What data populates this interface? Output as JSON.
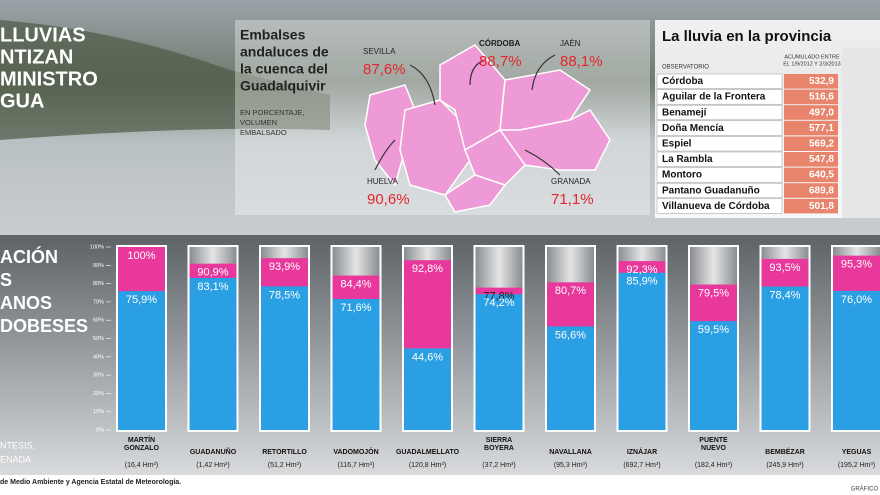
{
  "headline": {
    "lines": [
      "LLUVIAS",
      "NTIZAN",
      "MINISTRO",
      "GUA"
    ]
  },
  "section": {
    "lines": [
      "ACIÓN",
      "S",
      "ANOS",
      "DOBESES"
    ],
    "note": [
      "NTESIS,",
      "ENADA"
    ]
  },
  "source": "de Medio Ambiente y Agencia Estatal de Meteorología.",
  "credit": "GRÁFICO",
  "map": {
    "title": [
      "Embalses",
      "andaluces de",
      "la cuenca del",
      "Guadalquivir"
    ],
    "subtitle": [
      "EN PORCENTAJE,",
      "VOLUMEN",
      "EMBALSADO"
    ],
    "provinces": [
      {
        "name": "SEVILLA",
        "value": 87.6,
        "value_label": "87,6%"
      },
      {
        "name": "CÓRDOBA",
        "value": 88.7,
        "value_label": "88,7%"
      },
      {
        "name": "JAÉN",
        "value": 88.1,
        "value_label": "88,1%"
      },
      {
        "name": "HUELVA",
        "value": 90.6,
        "value_label": "90,6%"
      },
      {
        "name": "GRANADA",
        "value": 71.1,
        "value_label": "71,1%"
      }
    ]
  },
  "table": {
    "title": "La lluvia en la provincia",
    "headers": [
      "OBSERVATORIO",
      "ACUMULADO ENTRE",
      "EL 1/9/2012 Y 2/3/2013"
    ],
    "rows": [
      [
        "Córdoba",
        "532,9"
      ],
      [
        "Aguilar de la Frontera",
        "516,6"
      ],
      [
        "Benamejí",
        "497,0"
      ],
      [
        "Doña Mencía",
        "577,1"
      ],
      [
        "Espiel",
        "569,2"
      ],
      [
        "La Rambla",
        "547,8"
      ],
      [
        "Montoro",
        "640,5"
      ],
      [
        "Pantano Guadanuño",
        "689,8"
      ],
      [
        "Villanueva de Córdoba",
        "501,8"
      ]
    ]
  },
  "chart_data": {
    "type": "bar",
    "categories": [
      "MARTÍN GONZALO",
      "GUADANUÑO",
      "RETORTILLO",
      "VADOMOJÓN",
      "GUADALMELLATO",
      "SIERRA BOYERA",
      "NAVALLANA",
      "IZNÁJAR",
      "PUENTE NUEVO",
      "BEMBÉZAR",
      "YEGUAS"
    ],
    "capacities": [
      "(16,4 Hm³)",
      "(1,42 Hm³)",
      "(51,2 Hm³)",
      "(116,7 Hm³)",
      "(120,8 Hm³)",
      "(37,2 Hm³)",
      "(95,3 Hm³)",
      "(692,7 Hm³)",
      "(182,4 Hm³)",
      "(245,9 Hm³)",
      "(195,2 Hm³)"
    ],
    "series": [
      {
        "color": "#e8389b",
        "values": [
          100,
          90.9,
          93.9,
          84.4,
          92.8,
          77.8,
          80.7,
          92.3,
          79.5,
          93.5,
          95.3
        ],
        "value_labels": [
          "100%",
          "90,9%",
          "93,9%",
          "84,4%",
          "92,8%",
          "77,8%",
          "80,7%",
          "92,3%",
          "79,5%",
          "93,5%",
          "95,3%"
        ]
      },
      {
        "color": "#2b9fe3",
        "values": [
          75.9,
          83.1,
          78.5,
          71.6,
          44.6,
          74.2,
          56.6,
          85.9,
          59.5,
          78.4,
          76.0
        ],
        "value_labels": [
          "75,9%",
          "83,1%",
          "78,5%",
          "71,6%",
          "44,6%",
          "74,2%",
          "56,6%",
          "85,9%",
          "59,5%",
          "78,4%",
          "76,0%"
        ]
      }
    ],
    "ylim": [
      0,
      100
    ],
    "yticks": [
      {
        "value": 0,
        "label": "0%"
      },
      {
        "value": 10,
        "label": "10%"
      },
      {
        "value": 20,
        "label": "20%"
      },
      {
        "value": 30,
        "label": "30%"
      },
      {
        "value": 40,
        "label": "40%"
      },
      {
        "value": 50,
        "label": "50%"
      },
      {
        "value": 60,
        "label": "60%"
      },
      {
        "value": 70,
        "label": "70%"
      },
      {
        "value": 80,
        "label": "80%"
      },
      {
        "value": 90,
        "label": "90%"
      },
      {
        "value": 100,
        "label": "100%"
      }
    ]
  }
}
